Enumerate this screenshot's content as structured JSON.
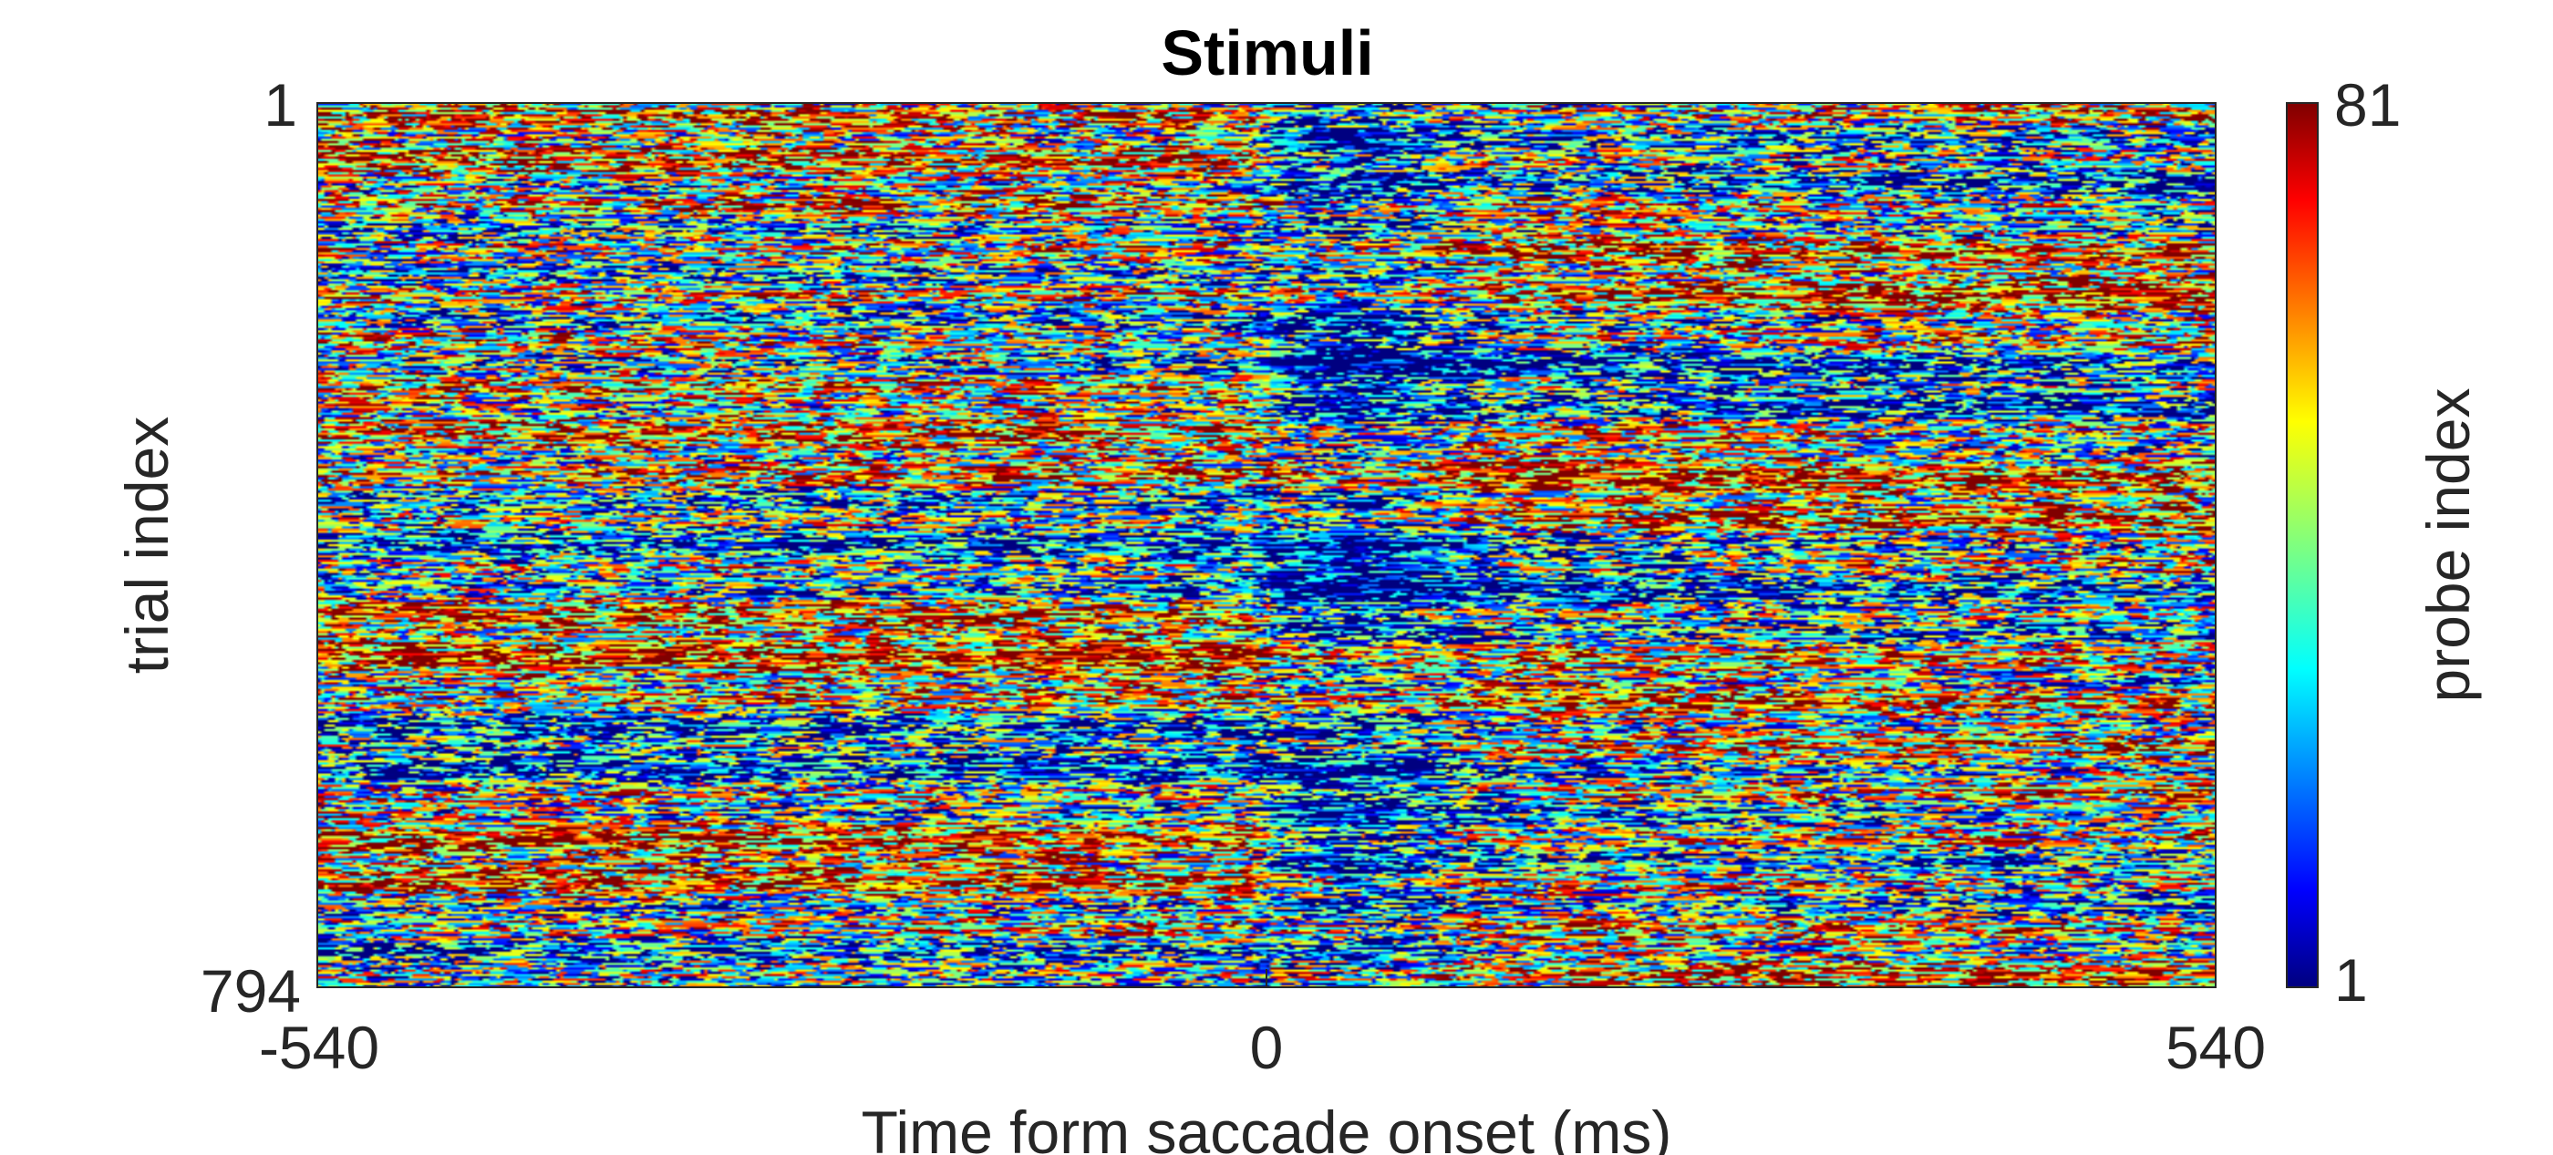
{
  "chart_data": {
    "type": "heatmap",
    "title": "Stimuli",
    "xlabel": "Time form saccade onset (ms)",
    "ylabel": "trial index",
    "colorbar_label": "probe index",
    "xlim": [
      -540,
      540
    ],
    "ylim": [
      1,
      794
    ],
    "x_ticks": [
      "-540",
      "0",
      "540"
    ],
    "y_ticks": [
      "1",
      "794"
    ],
    "colorbar_range": [
      1,
      81
    ],
    "colorbar_ticks": [
      "81",
      "1"
    ],
    "colormap": "jet",
    "y_direction": "reversed",
    "grid": false,
    "value_pattern": "noisy probe indices across all trials; diagonal bands of low indices drift across time, with a darker band of low values around 0-60 ms after saccade onset"
  }
}
